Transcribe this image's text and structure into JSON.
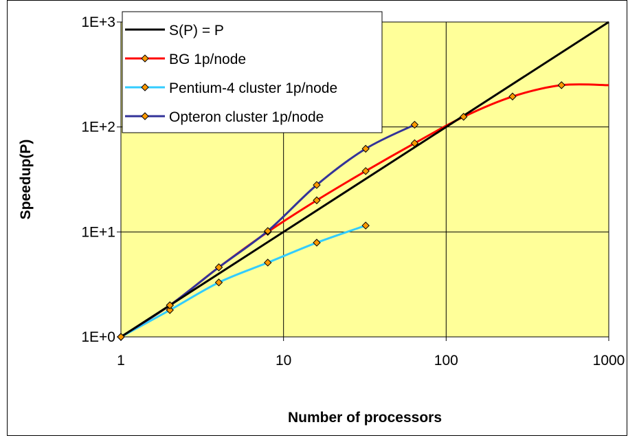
{
  "chart_data": {
    "type": "line",
    "title": "",
    "xlabel": "Number of processors",
    "ylabel": "Speedup(P)",
    "x_scale": "log",
    "y_scale": "log",
    "xlim": [
      1,
      1000
    ],
    "ylim": [
      1,
      1000
    ],
    "x_ticks": [
      1,
      10,
      100,
      1000
    ],
    "x_tick_labels": [
      "1",
      "10",
      "100",
      "1000"
    ],
    "y_ticks": [
      1,
      10,
      100,
      1000
    ],
    "y_tick_labels": [
      "1E+0",
      "1E+1",
      "1E+2",
      "1E+3"
    ],
    "grid": true,
    "legend_position": "top-left",
    "plot_background": "#FFFF99",
    "marker_color": "#FF9900",
    "series": [
      {
        "name": "S(P) = P",
        "color": "#000000",
        "marker": "none",
        "x": [
          1,
          1000
        ],
        "y": [
          1,
          1000
        ]
      },
      {
        "name": "BG 1p/node",
        "color": "#FF0000",
        "marker": "diamond",
        "x": [
          1,
          2,
          4,
          8,
          16,
          32,
          64,
          128,
          256,
          512,
          1000
        ],
        "y": [
          1,
          2,
          4.6,
          10,
          20,
          38,
          70,
          125,
          195,
          250,
          250
        ]
      },
      {
        "name": "Pentium-4 cluster 1p/node",
        "color": "#33CCFF",
        "marker": "diamond",
        "x": [
          1,
          2,
          4,
          8,
          16,
          32
        ],
        "y": [
          1,
          1.8,
          3.3,
          5.1,
          7.9,
          11.5
        ]
      },
      {
        "name": "Opteron cluster 1p/node",
        "color": "#333399",
        "marker": "diamond",
        "x": [
          1,
          2,
          4,
          8,
          16,
          32,
          64
        ],
        "y": [
          1,
          2,
          4.6,
          10.2,
          28,
          62,
          105
        ]
      }
    ]
  }
}
